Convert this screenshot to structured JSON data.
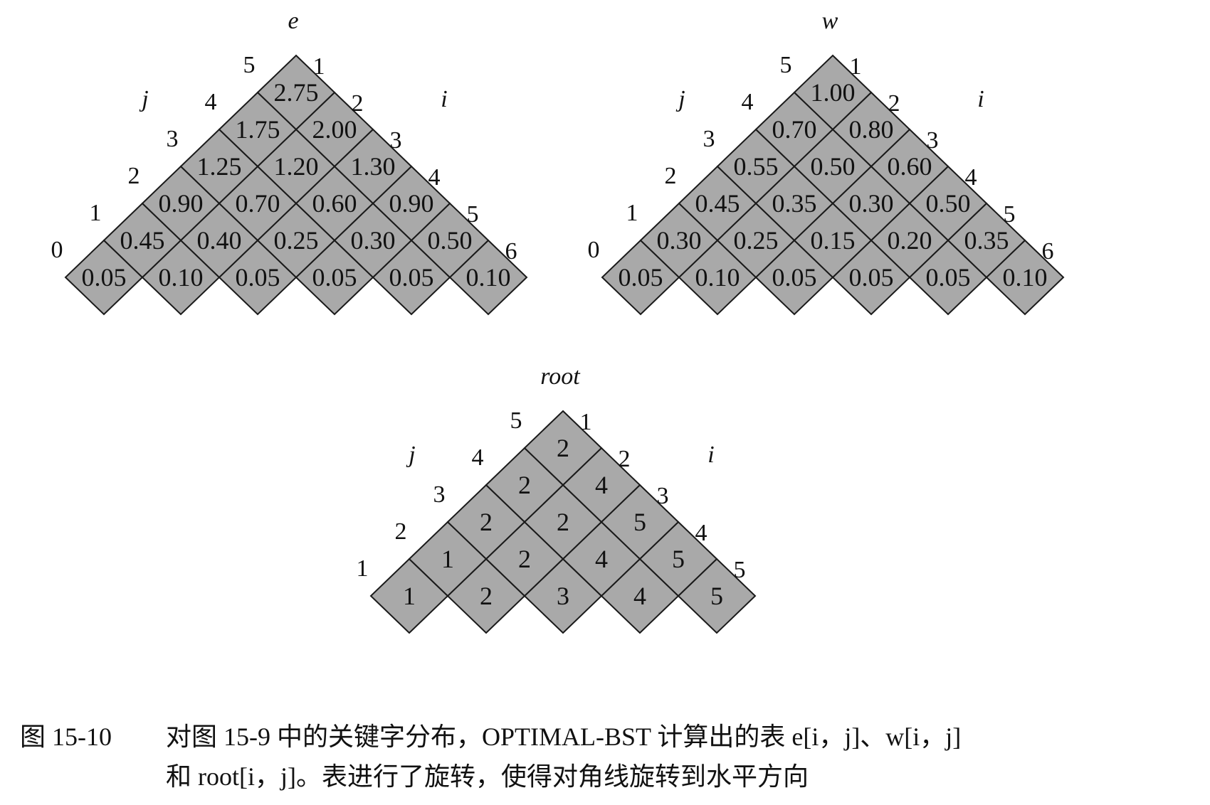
{
  "tables": [
    {
      "title": "e",
      "left_axis": "j",
      "right_axis": "i",
      "j_labels": [
        "0",
        "1",
        "2",
        "3",
        "4",
        "5"
      ],
      "i_labels": [
        "1",
        "2",
        "3",
        "4",
        "5",
        "6"
      ],
      "rows": [
        [
          "0.05",
          "0.10",
          "0.05",
          "0.05",
          "0.05",
          "0.10"
        ],
        [
          "0.45",
          "0.40",
          "0.25",
          "0.30",
          "0.50"
        ],
        [
          "0.90",
          "0.70",
          "0.60",
          "0.90"
        ],
        [
          "1.25",
          "1.20",
          "1.30"
        ],
        [
          "1.75",
          "2.00"
        ],
        [
          "2.75"
        ]
      ]
    },
    {
      "title": "w",
      "left_axis": "j",
      "right_axis": "i",
      "j_labels": [
        "0",
        "1",
        "2",
        "3",
        "4",
        "5"
      ],
      "i_labels": [
        "1",
        "2",
        "3",
        "4",
        "5",
        "6"
      ],
      "rows": [
        [
          "0.05",
          "0.10",
          "0.05",
          "0.05",
          "0.05",
          "0.10"
        ],
        [
          "0.30",
          "0.25",
          "0.15",
          "0.20",
          "0.35"
        ],
        [
          "0.45",
          "0.35",
          "0.30",
          "0.50"
        ],
        [
          "0.55",
          "0.50",
          "0.60"
        ],
        [
          "0.70",
          "0.80"
        ],
        [
          "1.00"
        ]
      ]
    },
    {
      "title": "root",
      "left_axis": "j",
      "right_axis": "i",
      "j_labels": [
        "1",
        "2",
        "3",
        "4",
        "5"
      ],
      "i_labels": [
        "1",
        "2",
        "3",
        "4",
        "5"
      ],
      "rows": [
        [
          "1",
          "2",
          "3",
          "4",
          "5"
        ],
        [
          "1",
          "2",
          "4",
          "5"
        ],
        [
          "2",
          "2",
          "5"
        ],
        [
          "2",
          "4"
        ],
        [
          "2"
        ]
      ]
    }
  ],
  "caption": {
    "figure_number": "图 15-10",
    "line1": "对图 15-9 中的关键字分布，OPTIMAL-BST 计算出的表 e[i，j]、w[i，j]",
    "line2": "和 root[i，j]。表进行了旋转，使得对角线旋转到水平方向"
  },
  "colors": {
    "cell_fill": "#a9a9a9",
    "cell_stroke": "#1a1a1a",
    "text": "#111111"
  }
}
